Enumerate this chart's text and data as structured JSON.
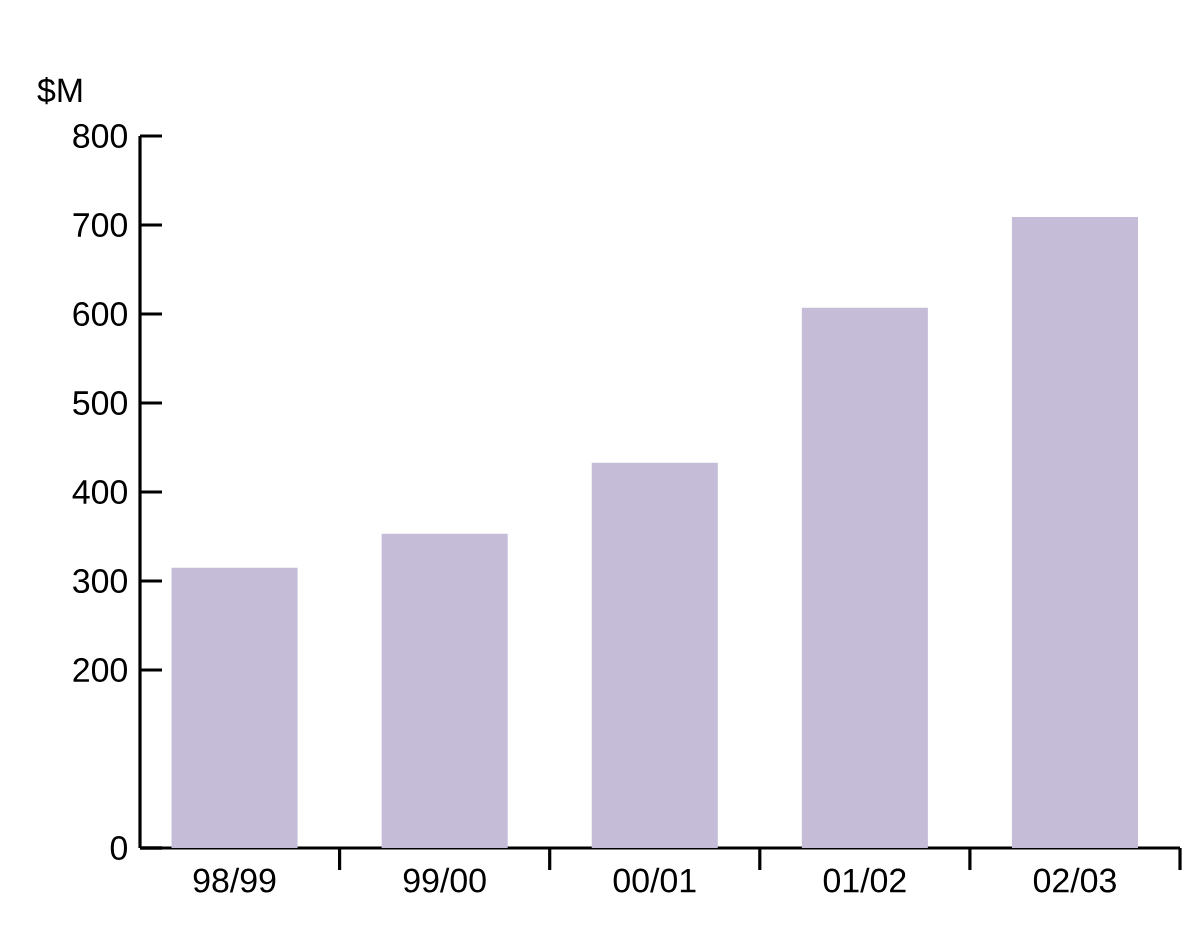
{
  "chart_data": {
    "type": "bar",
    "ylabel": "$M",
    "categories": [
      "98/99",
      "99/00",
      "00/01",
      "01/02",
      "02/03"
    ],
    "values": [
      315,
      353,
      433,
      607,
      709
    ],
    "color": "#c5bdd7",
    "ylim": [
      0,
      800
    ],
    "yticks": [
      0,
      200,
      300,
      400,
      500,
      600,
      700,
      800
    ],
    "grid": false
  }
}
